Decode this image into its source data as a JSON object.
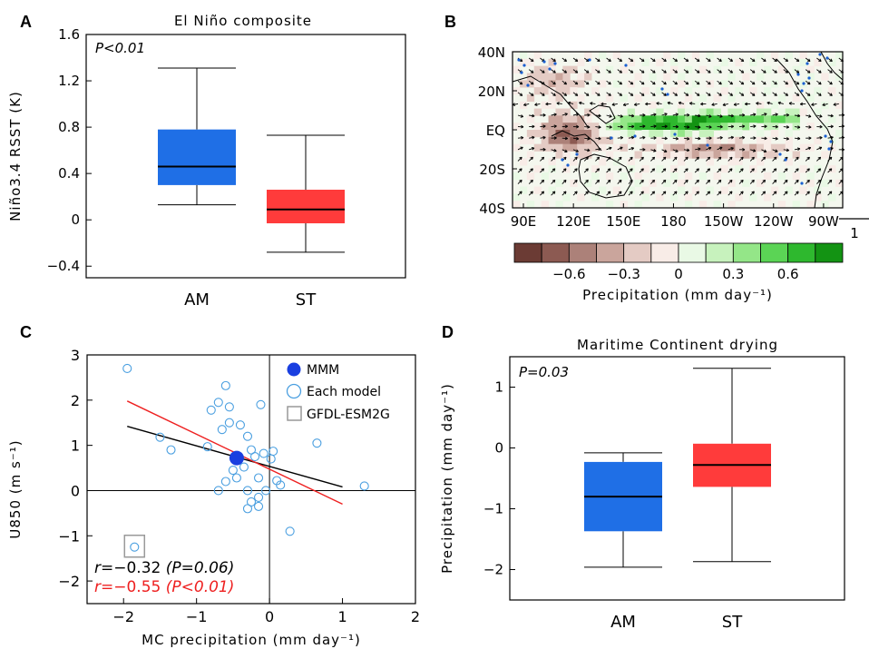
{
  "panels": {
    "a": {
      "label": "A",
      "title": "El Niño composite",
      "ylabel": "Niño3.4 RSST (K)",
      "annotation": "P<0.01"
    },
    "b": {
      "label": "B",
      "colorbar_label": "Precipitation (mm day⁻¹)",
      "ref_vector_label": "1"
    },
    "c": {
      "label": "C"
    },
    "d": {
      "label": "D",
      "title": "Maritime Continent drying",
      "ylabel": "Precipitation (mm day⁻¹)",
      "annotation": "P=0.03"
    }
  },
  "colors": {
    "am": "#1f6fe6",
    "st": "#ff3b3b",
    "scatter": "#4a9fe0",
    "mmm": "#1a3fe0",
    "fit_all": "#000000",
    "fit_excl": "#ee2020"
  },
  "chart_data": [
    {
      "id": "A",
      "type": "box",
      "title": "El Niño composite",
      "xlabel": "",
      "ylabel": "Niño3.4 RSST (K)",
      "ylim": [
        -0.5,
        1.6
      ],
      "yticks": [
        -0.4,
        0,
        0.4,
        0.8,
        1.2,
        1.6
      ],
      "categories": [
        "AM",
        "ST"
      ],
      "boxes": [
        {
          "name": "AM",
          "whisker_low": 0.13,
          "q1": 0.3,
          "median": 0.46,
          "q3": 0.78,
          "whisker_high": 1.31
        },
        {
          "name": "ST",
          "whisker_low": -0.28,
          "q1": -0.03,
          "median": 0.09,
          "q3": 0.26,
          "whisker_high": 0.73
        }
      ]
    },
    {
      "id": "B",
      "type": "heatmap",
      "xticks": [
        "90E",
        "120E",
        "150E",
        "180",
        "150W",
        "120W",
        "90W"
      ],
      "yticks": [
        "40N",
        "20N",
        "EQ",
        "20S",
        "40S"
      ],
      "colorbar_ticks": [
        -0.6,
        -0.3,
        0,
        0.3,
        0.6
      ],
      "colorbar_label": "Precipitation (mm day⁻¹)",
      "ref_vector": 1
    },
    {
      "id": "C",
      "type": "scatter",
      "xlabel": "MC precipitation (mm day⁻¹)",
      "ylabel": "U850 (m s⁻¹)",
      "xlim": [
        -2.5,
        2
      ],
      "ylim": [
        -2.5,
        3
      ],
      "xticks": [
        -2,
        -1,
        0,
        1,
        2
      ],
      "yticks": [
        -2,
        -1,
        0,
        1,
        2,
        3
      ],
      "legend": [
        "MMM",
        "Each model",
        "GFDL-ESM2G"
      ],
      "legend_position": "top-right",
      "mmm": [
        -0.45,
        0.72
      ],
      "outlier_boxed": [
        -1.85,
        -1.25
      ],
      "points": [
        [
          -1.95,
          2.7
        ],
        [
          -1.5,
          1.18
        ],
        [
          -1.35,
          0.9
        ],
        [
          -0.85,
          0.97
        ],
        [
          -0.65,
          1.35
        ],
        [
          -0.55,
          1.5
        ],
        [
          -0.55,
          1.85
        ],
        [
          -0.7,
          1.95
        ],
        [
          -0.6,
          2.32
        ],
        [
          -0.8,
          1.78
        ],
        [
          -0.4,
          1.45
        ],
        [
          -0.3,
          1.2
        ],
        [
          -0.12,
          1.9
        ],
        [
          -0.25,
          0.9
        ],
        [
          -0.5,
          0.45
        ],
        [
          -0.45,
          0.28
        ],
        [
          -0.6,
          0.2
        ],
        [
          -0.35,
          0.52
        ],
        [
          -0.15,
          0.28
        ],
        [
          -0.2,
          0.75
        ],
        [
          -0.08,
          0.82
        ],
        [
          0.05,
          0.87
        ],
        [
          0.02,
          0.7
        ],
        [
          -0.3,
          0.0
        ],
        [
          -0.25,
          -0.25
        ],
        [
          -0.15,
          -0.35
        ],
        [
          -0.15,
          -0.15
        ],
        [
          -0.05,
          0.0
        ],
        [
          0.1,
          0.22
        ],
        [
          0.15,
          0.12
        ],
        [
          -0.3,
          -0.4
        ],
        [
          0.65,
          1.05
        ],
        [
          0.28,
          -0.9
        ],
        [
          1.3,
          0.1
        ],
        [
          -0.7,
          0.0
        ]
      ],
      "fits": [
        {
          "name": "all",
          "from": [
            -1.95,
            1.42
          ],
          "to": [
            1.0,
            0.08
          ],
          "r_label": "r=−0.32",
          "p_label": "(P=0.06)"
        },
        {
          "name": "excl",
          "from": [
            -1.95,
            1.98
          ],
          "to": [
            1.0,
            -0.3
          ],
          "r_label": "r=−0.55",
          "p_label": "(P<0.01)"
        }
      ]
    },
    {
      "id": "D",
      "type": "box",
      "title": "Maritime Continent drying",
      "xlabel": "",
      "ylabel": "Precipitation (mm day⁻¹)",
      "ylim": [
        -2.5,
        1.5
      ],
      "yticks": [
        -2,
        -1,
        0,
        1
      ],
      "categories": [
        "AM",
        "ST"
      ],
      "boxes": [
        {
          "name": "AM",
          "whisker_low": -1.96,
          "q1": -1.37,
          "median": -0.8,
          "q3": -0.23,
          "whisker_high": -0.08
        },
        {
          "name": "ST",
          "whisker_low": -1.87,
          "q1": -0.64,
          "median": -0.28,
          "q3": 0.07,
          "whisker_high": 1.31
        }
      ]
    }
  ]
}
